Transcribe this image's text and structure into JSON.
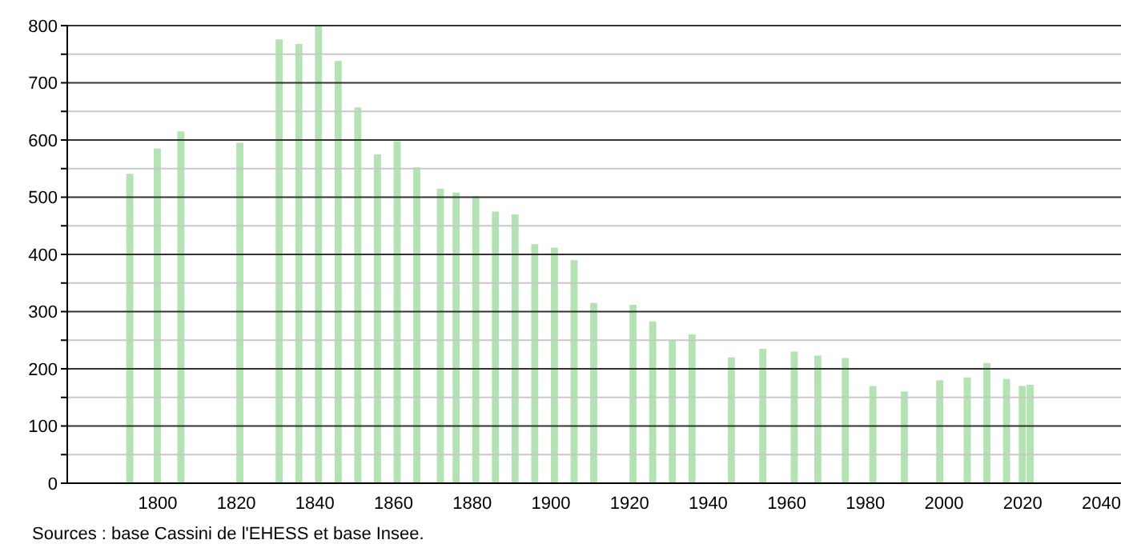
{
  "chart_data": {
    "type": "bar",
    "x": [
      1793,
      1800,
      1806,
      1821,
      1831,
      1836,
      1841,
      1846,
      1851,
      1856,
      1861,
      1866,
      1872,
      1876,
      1881,
      1886,
      1891,
      1896,
      1901,
      1906,
      1911,
      1921,
      1926,
      1931,
      1936,
      1946,
      1954,
      1962,
      1968,
      1975,
      1982,
      1990,
      1999,
      2006,
      2011,
      2016,
      2020,
      2022
    ],
    "values": [
      541,
      585,
      615,
      595,
      776,
      768,
      800,
      738,
      657,
      575,
      598,
      552,
      515,
      508,
      502,
      475,
      470,
      418,
      412,
      390,
      315,
      312,
      283,
      250,
      260,
      220,
      235,
      230,
      223,
      219,
      170,
      160,
      180,
      185,
      210,
      182,
      170,
      172
    ],
    "color": "#b3e3b3",
    "xlim": [
      1777,
      2045
    ],
    "xticks": [
      1800,
      1820,
      1840,
      1860,
      1880,
      1900,
      1920,
      1940,
      1960,
      1980,
      2000,
      2020,
      2040
    ],
    "ylim": [
      0,
      800
    ],
    "yticks": [
      0,
      {
        "value": 50,
        "label": null
      },
      100,
      {
        "value": 150,
        "label": null
      },
      200,
      {
        "value": 250,
        "label": null
      },
      300,
      {
        "value": 350,
        "label": null
      },
      400,
      {
        "value": 450,
        "label": null
      },
      500,
      {
        "value": 550,
        "label": null
      },
      600,
      {
        "value": 650,
        "label": null
      },
      700,
      {
        "value": 750,
        "label": null
      },
      800
    ],
    "grid": "y",
    "annotations": [
      "Sources : base Cassini de l'EHESS et base Insee."
    ]
  }
}
